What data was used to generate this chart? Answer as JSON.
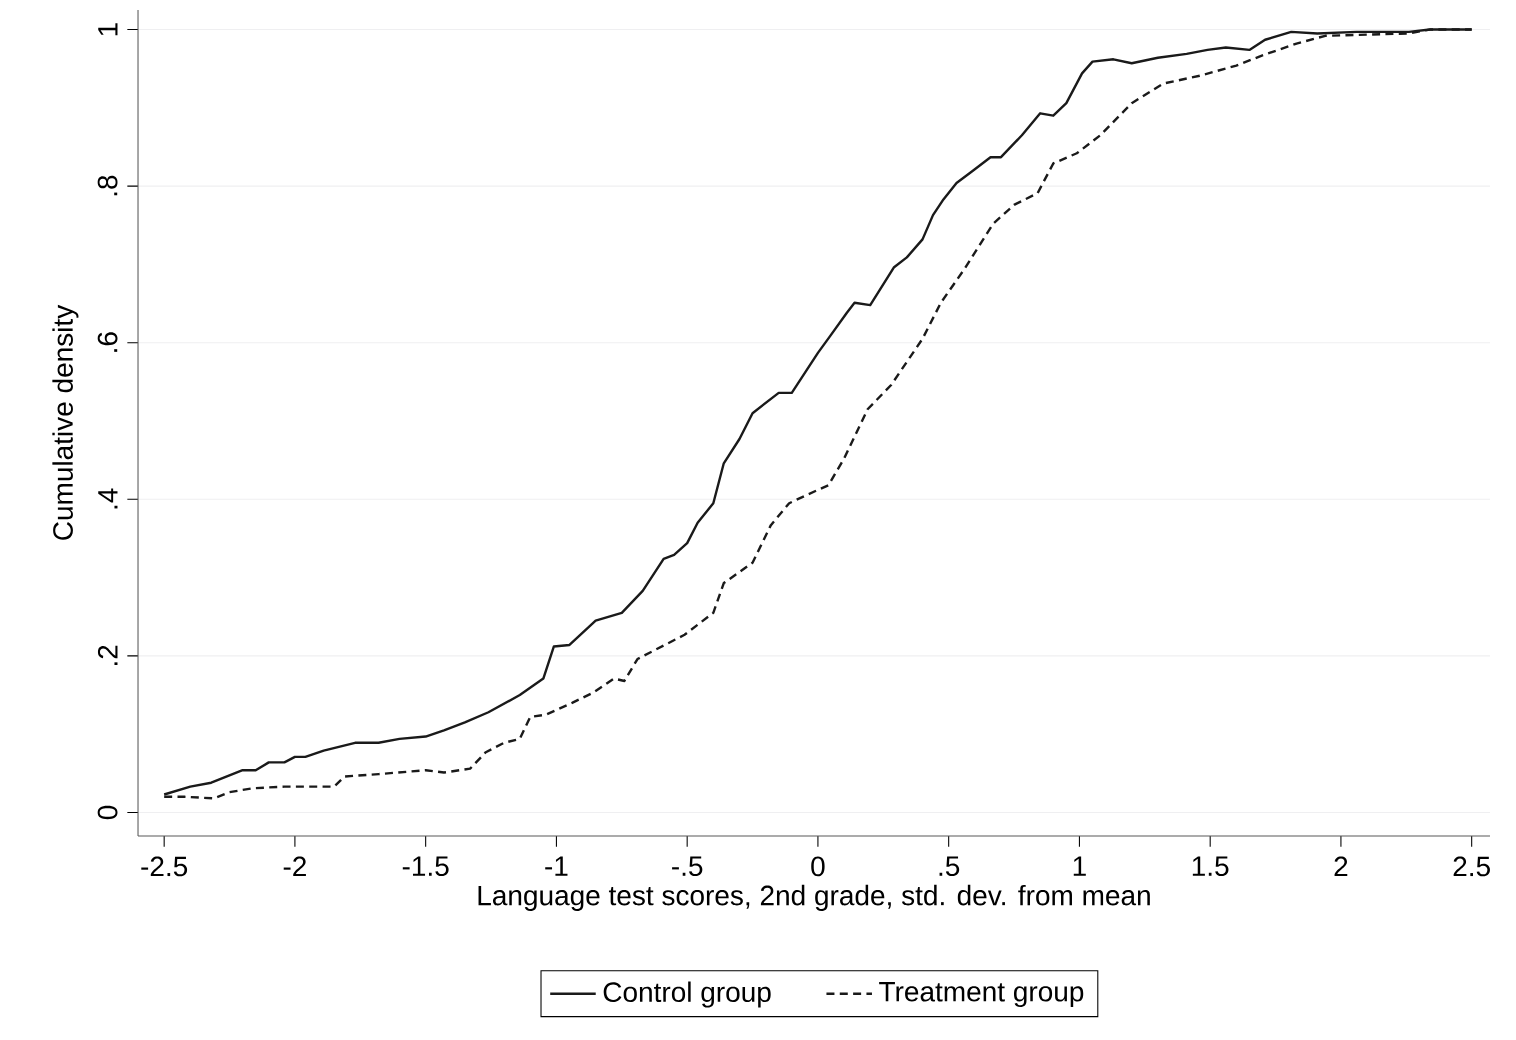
{
  "chart_data": {
    "type": "line",
    "xlabel": "Language test scores, 2nd grade, std. dev. from mean",
    "ylabel": "Cumulative density",
    "xlim": [
      -2.6,
      2.57
    ],
    "ylim": [
      -0.03,
      1.025
    ],
    "xticks": [
      {
        "value": -2.5,
        "label": "-2.5"
      },
      {
        "value": -2,
        "label": "-2"
      },
      {
        "value": -1.5,
        "label": "-1.5"
      },
      {
        "value": -1,
        "label": "-1"
      },
      {
        "value": -0.5,
        "label": "-.5"
      },
      {
        "value": 0,
        "label": "0"
      },
      {
        "value": 0.5,
        "label": ".5"
      },
      {
        "value": 1,
        "label": "1"
      },
      {
        "value": 1.5,
        "label": "1.5"
      },
      {
        "value": 2,
        "label": "2"
      },
      {
        "value": 2.5,
        "label": "2.5"
      }
    ],
    "yticks": [
      {
        "value": 0,
        "label": "0"
      },
      {
        "value": 0.2,
        "label": ".2"
      },
      {
        "value": 0.4,
        "label": ".4"
      },
      {
        "value": 0.6,
        "label": ".6"
      },
      {
        "value": 0.8,
        "label": ".8"
      },
      {
        "value": 1,
        "label": "1"
      }
    ],
    "grid": "y",
    "legend": "bottom",
    "series": [
      {
        "name": "Control group",
        "color": "#1a1a1a",
        "line_style": "solid",
        "x": [
          -2.5,
          -2.4,
          -2.32,
          -2.2,
          -2.15,
          -2.1,
          -2.04,
          -2.0,
          -1.96,
          -1.89,
          -1.77,
          -1.68,
          -1.6,
          -1.5,
          -1.43,
          -1.35,
          -1.26,
          -1.14,
          -1.05,
          -1.01,
          -0.95,
          -0.85,
          -0.75,
          -0.67,
          -0.59,
          -0.55,
          -0.5,
          -0.46,
          -0.4,
          -0.36,
          -0.3,
          -0.25,
          -0.15,
          -0.1,
          0.0,
          0.05,
          0.11,
          0.14,
          0.2,
          0.29,
          0.34,
          0.4,
          0.44,
          0.48,
          0.53,
          0.59,
          0.66,
          0.7,
          0.78,
          0.85,
          0.9,
          0.95,
          1.01,
          1.05,
          1.13,
          1.2,
          1.3,
          1.41,
          1.49,
          1.56,
          1.65,
          1.71,
          1.81,
          1.91,
          2.06,
          2.26,
          2.34,
          2.5
        ],
        "values": [
          0.023,
          0.033,
          0.038,
          0.054,
          0.054,
          0.064,
          0.064,
          0.071,
          0.071,
          0.079,
          0.089,
          0.089,
          0.094,
          0.097,
          0.105,
          0.115,
          0.128,
          0.15,
          0.171,
          0.212,
          0.214,
          0.245,
          0.255,
          0.283,
          0.324,
          0.329,
          0.344,
          0.37,
          0.395,
          0.446,
          0.477,
          0.51,
          0.536,
          0.536,
          0.587,
          0.61,
          0.638,
          0.651,
          0.648,
          0.696,
          0.709,
          0.732,
          0.763,
          0.783,
          0.804,
          0.819,
          0.837,
          0.837,
          0.865,
          0.893,
          0.89,
          0.906,
          0.944,
          0.959,
          0.962,
          0.957,
          0.964,
          0.969,
          0.974,
          0.977,
          0.974,
          0.987,
          0.997,
          0.995,
          0.997,
          0.997,
          1.0,
          1.0
        ]
      },
      {
        "name": "Treatment group",
        "color": "#1a1a1a",
        "line_style": "dashed",
        "x": [
          -2.5,
          -2.42,
          -2.31,
          -2.25,
          -2.16,
          -2.04,
          -1.85,
          -1.81,
          -1.68,
          -1.5,
          -1.43,
          -1.33,
          -1.27,
          -1.2,
          -1.14,
          -1.1,
          -1.04,
          -0.94,
          -0.86,
          -0.78,
          -0.74,
          -0.69,
          -0.51,
          -0.4,
          -0.36,
          -0.25,
          -0.18,
          -0.11,
          -0.04,
          0.04,
          0.1,
          0.19,
          0.28,
          0.4,
          0.47,
          0.56,
          0.67,
          0.75,
          0.84,
          0.9,
          0.99,
          1.08,
          1.2,
          1.32,
          1.46,
          1.6,
          1.7,
          1.83,
          1.94,
          2.26,
          2.34,
          2.5
        ],
        "values": [
          0.02,
          0.02,
          0.018,
          0.026,
          0.031,
          0.033,
          0.033,
          0.046,
          0.049,
          0.054,
          0.051,
          0.056,
          0.077,
          0.089,
          0.094,
          0.122,
          0.125,
          0.14,
          0.153,
          0.171,
          0.168,
          0.196,
          0.227,
          0.255,
          0.293,
          0.319,
          0.367,
          0.395,
          0.406,
          0.418,
          0.452,
          0.515,
          0.546,
          0.605,
          0.651,
          0.694,
          0.752,
          0.776,
          0.791,
          0.829,
          0.842,
          0.865,
          0.906,
          0.931,
          0.941,
          0.954,
          0.967,
          0.982,
          0.992,
          0.995,
          1.0,
          1.0
        ]
      }
    ]
  }
}
